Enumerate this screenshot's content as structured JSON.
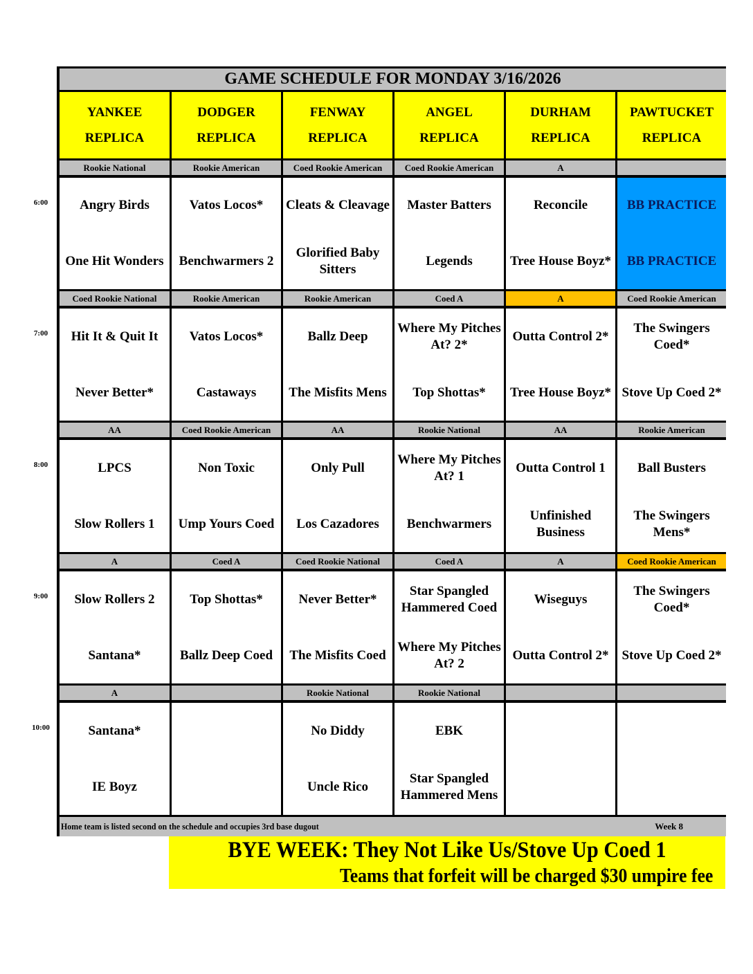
{
  "title": "GAME SCHEDULE FOR MONDAY 3/16/2026",
  "colors": {
    "gray": "#c0c0c0",
    "yellow": "#ffff00",
    "blue": "#0099ff",
    "orange": "#ffc000"
  },
  "venues": [
    {
      "line1": "YANKEE",
      "line2": "REPLICA"
    },
    {
      "line1": "DODGER",
      "line2": "REPLICA"
    },
    {
      "line1": "FENWAY",
      "line2": "REPLICA"
    },
    {
      "line1": "ANGEL",
      "line2": "REPLICA"
    },
    {
      "line1": "DURHAM",
      "line2": "REPLICA"
    },
    {
      "line1": "PAWTUCKET",
      "line2": "REPLICA"
    }
  ],
  "slots": [
    {
      "time": "6:00",
      "divisions": [
        "Rookie National",
        "Rookie American",
        "Coed Rookie American",
        "Coed Rookie American",
        "A",
        ""
      ],
      "division_highlight": [
        "",
        "",
        "",
        "",
        "",
        ""
      ],
      "away": [
        "Angry Birds",
        "Vatos Locos*",
        "Cleats & Cleavage",
        "Master Batters",
        "Reconcile",
        "BB PRACTICE"
      ],
      "home": [
        "One Hit Wonders",
        "Benchwarmers 2",
        "Glorified Baby Sitters",
        "Legends",
        "Tree House Boyz*",
        "BB PRACTICE"
      ],
      "game_highlight": [
        "",
        "",
        "",
        "",
        "",
        "blue"
      ]
    },
    {
      "time": "7:00",
      "divisions": [
        "Coed Rookie National",
        "Rookie American",
        "Rookie American",
        "Coed A",
        "A",
        "Coed Rookie American"
      ],
      "division_highlight": [
        "",
        "",
        "",
        "",
        "orange",
        ""
      ],
      "away": [
        "Hit It & Quit It",
        "Vatos Locos*",
        "Ballz Deep",
        "Where My Pitches At? 2*",
        "Outta Control 2*",
        "The Swingers Coed*"
      ],
      "home": [
        "Never Better*",
        "Castaways",
        "The Misfits Mens",
        "Top Shottas*",
        "Tree House Boyz*",
        "Stove Up Coed 2*"
      ],
      "game_highlight": [
        "",
        "",
        "",
        "",
        "",
        ""
      ]
    },
    {
      "time": "8:00",
      "divisions": [
        "AA",
        "Coed Rookie American",
        "AA",
        "Rookie National",
        "AA",
        "Rookie American"
      ],
      "division_highlight": [
        "",
        "",
        "",
        "",
        "",
        ""
      ],
      "away": [
        "LPCS",
        "Non Toxic",
        "Only Pull",
        "Where My Pitches At? 1",
        "Outta Control 1",
        "Ball Busters"
      ],
      "home": [
        "Slow Rollers 1",
        "Ump Yours Coed",
        "Los Cazadores",
        "Benchwarmers",
        "Unfinished Business",
        "The Swingers Mens*"
      ],
      "game_highlight": [
        "",
        "",
        "",
        "",
        "",
        ""
      ]
    },
    {
      "time": "9:00",
      "divisions": [
        "A",
        "Coed A",
        "Coed Rookie National",
        "Coed A",
        "A",
        "Coed Rookie American"
      ],
      "division_highlight": [
        "",
        "",
        "",
        "",
        "",
        "orange"
      ],
      "away": [
        "Slow Rollers 2",
        "Top Shottas*",
        "Never Better*",
        "Star Spangled Hammered Coed",
        "Wiseguys",
        "The Swingers Coed*"
      ],
      "home": [
        "Santana*",
        "Ballz Deep Coed",
        "The Misfits Coed",
        "Where My Pitches At? 2",
        "Outta Control 2*",
        "Stove Up Coed 2*"
      ],
      "game_highlight": [
        "",
        "",
        "",
        "",
        "",
        ""
      ]
    },
    {
      "time": "10:00",
      "divisions": [
        "A",
        "",
        "Rookie National",
        "Rookie National",
        "",
        ""
      ],
      "division_highlight": [
        "",
        "",
        "",
        "",
        "",
        ""
      ],
      "away": [
        "Santana*",
        "",
        "No Diddy",
        "EBK",
        "",
        ""
      ],
      "home": [
        "IE Boyz",
        "",
        "Uncle Rico",
        "Star Spangled Hammered Mens",
        "",
        ""
      ],
      "game_highlight": [
        "",
        "",
        "",
        "",
        "",
        ""
      ]
    }
  ],
  "footer": {
    "note": "Home team is listed second on the schedule and occupies 3rd base dugout",
    "week": "Week 8"
  },
  "bye": {
    "line1": "BYE WEEK: They Not Like Us/Stove Up Coed 1",
    "line2": "Teams that forfeit will be charged $30 umpire fee"
  }
}
